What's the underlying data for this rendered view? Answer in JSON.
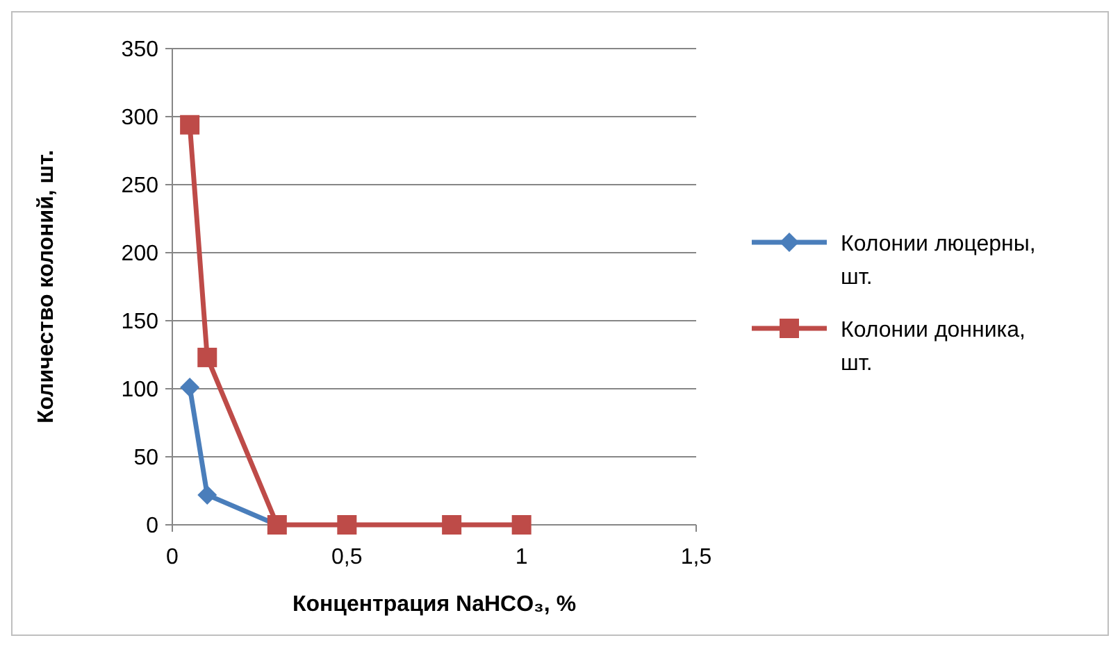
{
  "chart_data": {
    "type": "line",
    "xlabel": "Концентрация NaHCO₃, %",
    "ylabel": "Количество колоний, шт.",
    "x": [
      0.05,
      0.1,
      0.3,
      0.5,
      0.8,
      1
    ],
    "series": [
      {
        "name": "Колонии люцерны, шт.",
        "color": "#4a7ebb",
        "marker": "diamond",
        "values": [
          101,
          22,
          0,
          null,
          null,
          null
        ]
      },
      {
        "name": "Колонии донника, шт.",
        "color": "#be4b48",
        "marker": "square",
        "values": [
          294,
          123,
          0,
          0,
          0,
          0
        ]
      }
    ],
    "xlim": [
      0,
      1.5
    ],
    "xticks": [
      0,
      {
        "value": 0.5,
        "label": "0,5"
      },
      1,
      {
        "value": 1.5,
        "label": "1,5"
      }
    ],
    "ylim": [
      0,
      350
    ],
    "yticks": [
      0,
      50,
      100,
      150,
      200,
      250,
      300,
      350
    ],
    "grid": "y",
    "legend": "right",
    "line_style": "solid"
  }
}
